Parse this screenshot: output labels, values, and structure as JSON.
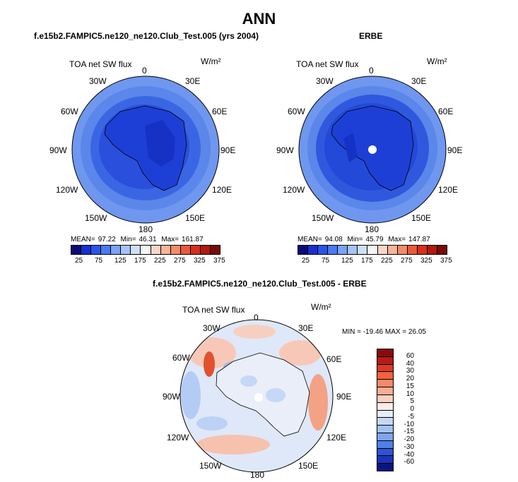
{
  "title": "ANN",
  "panel_left": {
    "title": "f.e15b2.FAMPIC5.ne120_ne120.Club_Test.005 (yrs 2004)",
    "variable": "TOA net SW flux",
    "units": "W/m²",
    "mean_label": "MEAN=",
    "mean": "97.22",
    "min_label": "Min=",
    "min": "46.31",
    "max_label": "Max=",
    "max": "161.87"
  },
  "panel_right": {
    "title": "ERBE",
    "variable": "TOA net SW flux",
    "units": "W/m²",
    "mean_label": "MEAN=",
    "mean": "94.08",
    "min_label": "Min=",
    "min": "45.79",
    "max_label": "Max=",
    "max": "147.87"
  },
  "panel_diff": {
    "title": "f.e15b2.FAMPIC5.ne120_ne120.Club_Test.005 - ERBE",
    "variable": "TOA net SW flux",
    "units": "W/m²",
    "minmax": "MIN = -19.46 MAX =  26.05"
  },
  "lon_labels": [
    "0",
    "30E",
    "60E",
    "90E",
    "120E",
    "150E",
    "180",
    "150W",
    "120W",
    "90W",
    "60W",
    "30W"
  ],
  "colorbar_top": {
    "labels": [
      "25",
      "75",
      "125",
      "175",
      "225",
      "275",
      "325",
      "375"
    ],
    "colors": [
      "#0b0b7a",
      "#1a2fcf",
      "#2a55e8",
      "#4b79f0",
      "#7aa2f5",
      "#a6c3f7",
      "#cfdff8",
      "#f5f5f5",
      "#f8d6c8",
      "#f6b49b",
      "#f28c6a",
      "#ea5a3a",
      "#d6301c",
      "#b01a10",
      "#7a0a06"
    ]
  },
  "colorbar_diff": {
    "labels": [
      "60",
      "40",
      "30",
      "20",
      "15",
      "10",
      "5",
      "0",
      "-5",
      "-10",
      "-15",
      "-20",
      "-30",
      "-40",
      "-60"
    ],
    "colors": [
      "#8b0a0a",
      "#b61c12",
      "#dd3a1e",
      "#f0623c",
      "#f48a66",
      "#f7ae92",
      "#f9cfbf",
      "#f6ece8",
      "#e6eefa",
      "#c6d8f7",
      "#a4c1f4",
      "#7ea5f0",
      "#4f7fe8",
      "#2a55d8",
      "#1a34b8",
      "#0a1480"
    ]
  }
}
